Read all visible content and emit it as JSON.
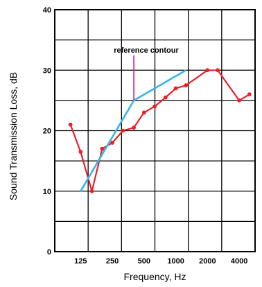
{
  "chart_data": {
    "type": "line",
    "title": "",
    "xlabel": "Frequency, Hz",
    "ylabel": "Sound Transmission Loss, dB",
    "x_scale": "log",
    "x_ticks": [
      {
        "value": 125,
        "label": "125"
      },
      {
        "value": 250,
        "label": "250"
      },
      {
        "value": 500,
        "label": "500"
      },
      {
        "value": 1000,
        "label": "1000"
      },
      {
        "value": 2000,
        "label": "2000"
      },
      {
        "value": 4000,
        "label": "4000"
      }
    ],
    "y_ticks": [
      {
        "value": 0,
        "label": "0"
      },
      {
        "value": 10,
        "label": "10"
      },
      {
        "value": 20,
        "label": "20"
      },
      {
        "value": 30,
        "label": "30"
      },
      {
        "value": 40,
        "label": "40"
      }
    ],
    "xlim": [
      71,
      5660
    ],
    "ylim": [
      0,
      40
    ],
    "grid": true,
    "annotation": {
      "text": "reference contour",
      "x": 400,
      "y": 25
    },
    "series": [
      {
        "name": "",
        "color": "#e8202a",
        "markers": true,
        "points": [
          {
            "x": 100,
            "y": 21
          },
          {
            "x": 125,
            "y": 16.5
          },
          {
            "x": 160,
            "y": 10
          },
          {
            "x": 200,
            "y": 17
          },
          {
            "x": 250,
            "y": 18
          },
          {
            "x": 315,
            "y": 20
          },
          {
            "x": 400,
            "y": 20.5
          },
          {
            "x": 500,
            "y": 23
          },
          {
            "x": 630,
            "y": 24
          },
          {
            "x": 800,
            "y": 25.5
          },
          {
            "x": 1000,
            "y": 27
          },
          {
            "x": 1250,
            "y": 27.5
          },
          {
            "x": 2000,
            "y": 30
          },
          {
            "x": 2500,
            "y": 30
          },
          {
            "x": 4000,
            "y": 25
          },
          {
            "x": 5000,
            "y": 26
          }
        ]
      },
      {
        "name": "",
        "color": "#35b5e8",
        "markers": false,
        "points": [
          {
            "x": 125,
            "y": 10
          },
          {
            "x": 400,
            "y": 25
          },
          {
            "x": 1250,
            "y": 30
          }
        ]
      }
    ]
  }
}
